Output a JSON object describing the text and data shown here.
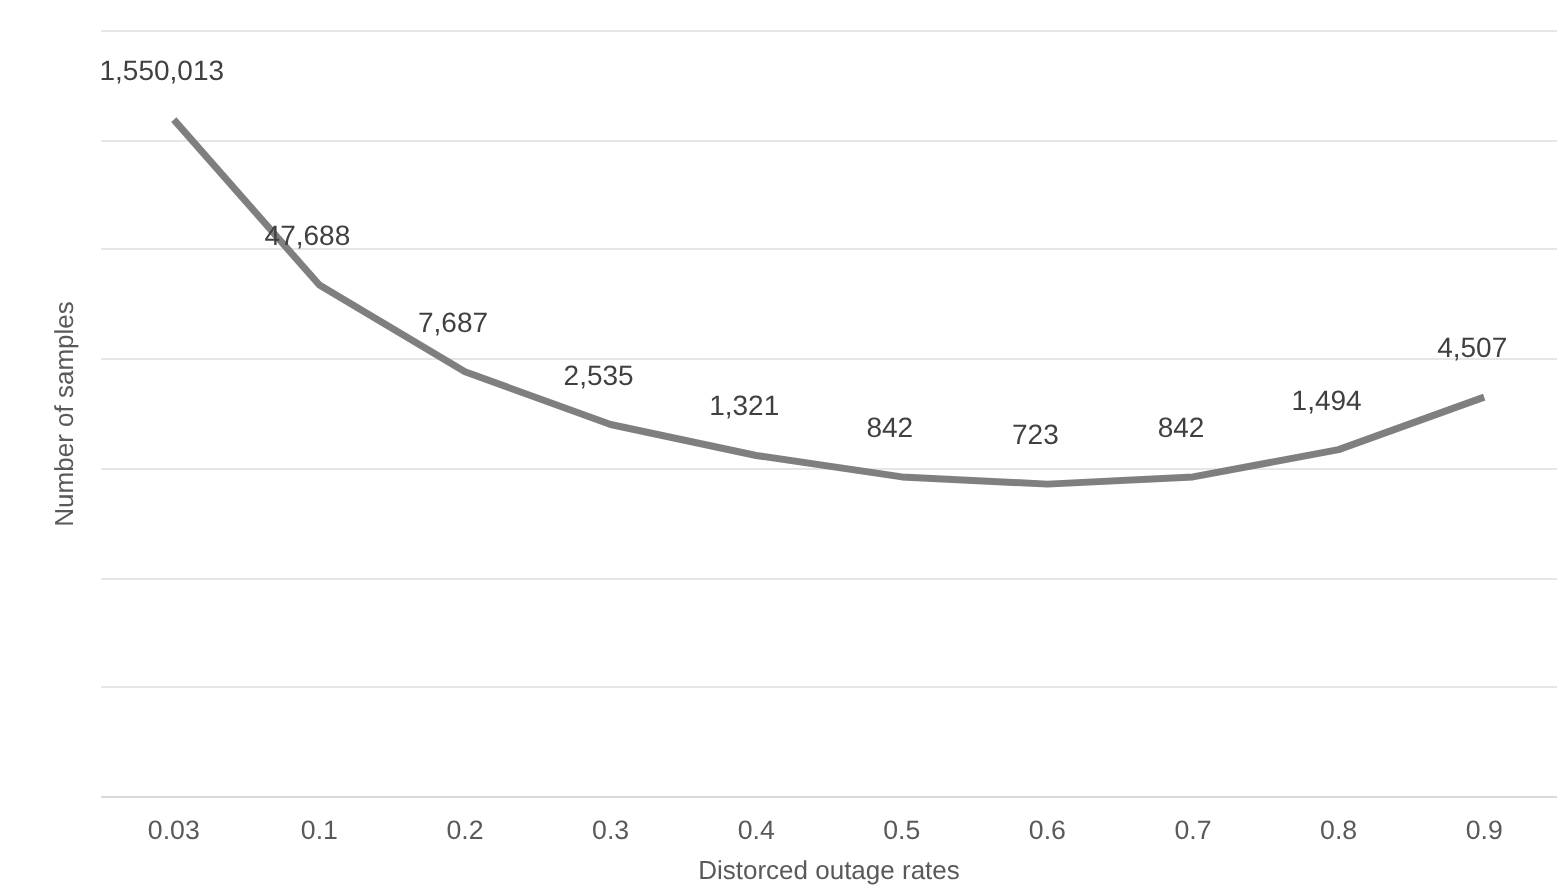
{
  "chart_data": {
    "type": "line",
    "xlabel": "Distorced outage rates",
    "ylabel": "Number of samples",
    "categories": [
      "0.03",
      "0.1",
      "0.2",
      "0.3",
      "0.4",
      "0.5",
      "0.6",
      "0.7",
      "0.8",
      "0.9"
    ],
    "series": [
      {
        "color": "#7f7f7f",
        "values": [
          1550013,
          47688,
          7687,
          2535,
          1321,
          842,
          723,
          842,
          1494,
          4507
        ],
        "value_labels": [
          "1,550,013",
          "47,688",
          "7,687",
          "2,535",
          "1,321",
          "842",
          "723",
          "842",
          "1,494",
          "4,507"
        ]
      }
    ],
    "log": true,
    "ylim": [
      1,
      10000000
    ],
    "yticks": [
      {
        "value": 1,
        "label": null
      },
      {
        "value": 10,
        "label": null
      },
      {
        "value": 100,
        "label": null
      },
      {
        "value": 1000,
        "label": null
      },
      {
        "value": 10000,
        "label": null
      },
      {
        "value": 100000,
        "label": null
      },
      {
        "value": 1000000,
        "label": null
      }
    ],
    "tick_labels": "x",
    "grid": "y",
    "line_style": "solid"
  }
}
